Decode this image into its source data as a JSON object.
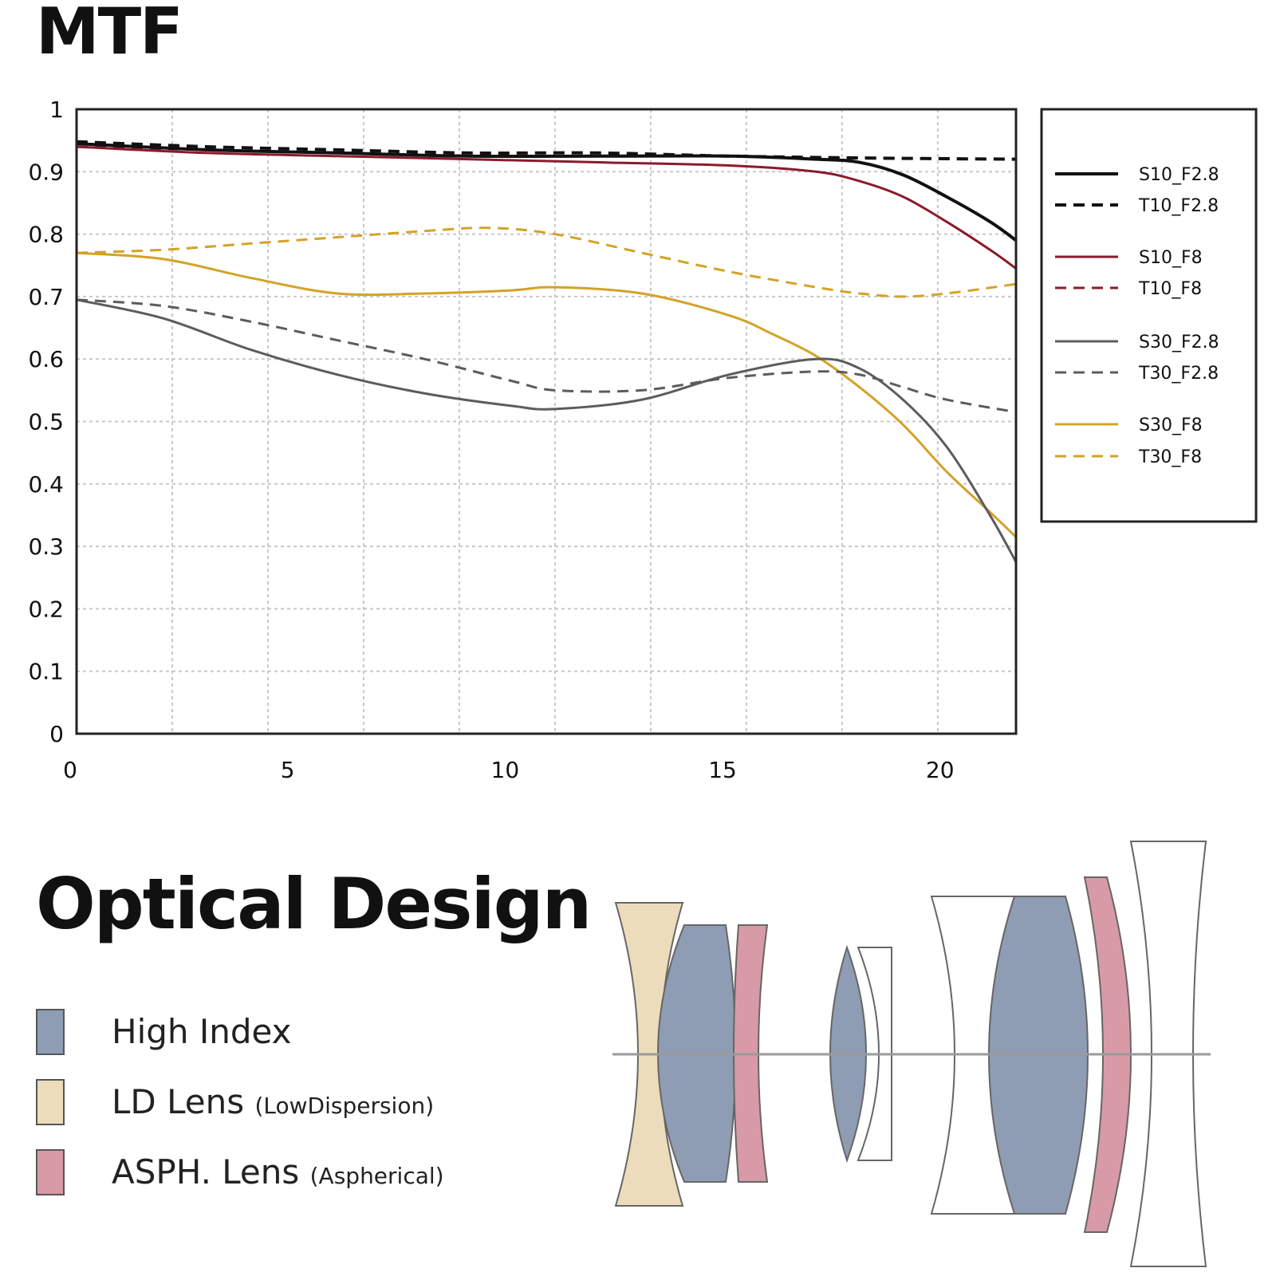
{
  "mtf": {
    "title": "MTF"
  },
  "chart_data": {
    "type": "line",
    "title": "MTF",
    "xlabel": "",
    "ylabel": "",
    "xlim": [
      0,
      21.6
    ],
    "ylim": [
      0,
      1
    ],
    "x_ticks": [
      "0",
      "5",
      "10",
      "15",
      "20"
    ],
    "x_tick_values": [
      0,
      5,
      10,
      15,
      20
    ],
    "y_ticks": [
      "0",
      "0.1",
      "0.2",
      "0.3",
      "0.4",
      "0.5",
      "0.6",
      "0.7",
      "0.8",
      "0.9",
      "1"
    ],
    "y_tick_values": [
      0,
      0.1,
      0.2,
      0.3,
      0.4,
      0.5,
      0.6,
      0.7,
      0.8,
      0.9,
      1
    ],
    "grid": true,
    "legend_position": "right",
    "series": [
      {
        "name": "S10_F2.8",
        "color": "#111111",
        "dash": "solid",
        "width": 4,
        "x": [
          0,
          3,
          6,
          9,
          12,
          15,
          17,
          18,
          19,
          20,
          21,
          21.6
        ],
        "y": [
          0.945,
          0.935,
          0.93,
          0.925,
          0.925,
          0.925,
          0.92,
          0.915,
          0.895,
          0.86,
          0.82,
          0.79
        ]
      },
      {
        "name": "T10_F2.8",
        "color": "#111111",
        "dash": "dashed",
        "width": 4,
        "x": [
          0,
          3,
          6,
          9,
          12,
          15,
          18,
          21.6
        ],
        "y": [
          0.948,
          0.94,
          0.935,
          0.93,
          0.93,
          0.925,
          0.922,
          0.92
        ]
      },
      {
        "name": "S10_F8",
        "color": "#8b1a2b",
        "dash": "solid",
        "width": 3,
        "x": [
          0,
          3,
          6,
          9,
          12,
          15,
          17,
          18,
          19,
          20,
          21,
          21.6
        ],
        "y": [
          0.94,
          0.93,
          0.925,
          0.92,
          0.915,
          0.91,
          0.9,
          0.885,
          0.86,
          0.82,
          0.775,
          0.745
        ]
      },
      {
        "name": "T10_F8",
        "color": "#8b1a2b",
        "dash": "dashed",
        "width": 3,
        "x": [
          0,
          3,
          6,
          9,
          12,
          15,
          18,
          21.6
        ],
        "y": [
          0.94,
          0.935,
          0.93,
          0.925,
          0.925,
          0.925,
          0.922,
          0.92
        ]
      },
      {
        "name": "S30_F2.8",
        "color": "#5c5c5c",
        "dash": "solid",
        "width": 3,
        "x": [
          0,
          2,
          4,
          6,
          8,
          10,
          11,
          13,
          15,
          17,
          18,
          19,
          20,
          21,
          21.6
        ],
        "y": [
          0.695,
          0.665,
          0.615,
          0.575,
          0.545,
          0.525,
          0.52,
          0.535,
          0.575,
          0.6,
          0.585,
          0.535,
          0.46,
          0.35,
          0.275
        ]
      },
      {
        "name": "T30_F2.8",
        "color": "#5c5c5c",
        "dash": "dashed",
        "width": 3,
        "x": [
          0,
          2,
          4,
          6,
          8,
          10,
          11,
          13,
          15,
          17,
          18,
          19,
          20,
          21.6
        ],
        "y": [
          0.695,
          0.685,
          0.66,
          0.63,
          0.6,
          0.565,
          0.55,
          0.55,
          0.57,
          0.58,
          0.575,
          0.555,
          0.535,
          0.515
        ]
      },
      {
        "name": "S30_F8",
        "color": "#d4a227",
        "dash": "solid",
        "width": 3,
        "x": [
          0,
          2,
          4,
          6,
          8,
          10,
          11,
          13,
          15,
          16,
          17,
          18,
          19,
          20,
          21,
          21.6
        ],
        "y": [
          0.77,
          0.76,
          0.73,
          0.705,
          0.705,
          0.71,
          0.715,
          0.705,
          0.67,
          0.64,
          0.605,
          0.555,
          0.495,
          0.42,
          0.355,
          0.315
        ]
      },
      {
        "name": "T30_F8",
        "color": "#d4a227",
        "dash": "dashed",
        "width": 3,
        "x": [
          0,
          2,
          4,
          6,
          8,
          9.5,
          11,
          13,
          15,
          17,
          18,
          19,
          20,
          21.6
        ],
        "y": [
          0.77,
          0.775,
          0.785,
          0.795,
          0.805,
          0.81,
          0.8,
          0.77,
          0.74,
          0.715,
          0.705,
          0.7,
          0.705,
          0.72
        ]
      }
    ]
  },
  "optical_design": {
    "title": "Optical Design",
    "legend": [
      {
        "label": "High Index",
        "sub": "",
        "color": "#8e9db3"
      },
      {
        "label": "LD Lens",
        "sub": "(LowDispersion)",
        "color": "#ecdcbb"
      },
      {
        "label": "ASPH. Lens",
        "sub": "(Aspherical)",
        "color": "#d89aa6"
      }
    ]
  }
}
